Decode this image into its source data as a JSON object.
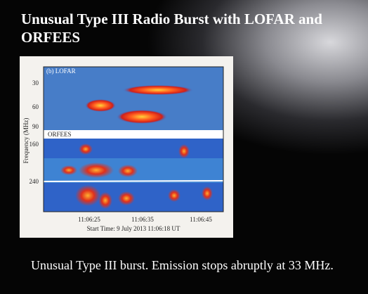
{
  "slide": {
    "title": "Unusual Type III Radio Burst with LOFAR and ORFEES",
    "figure": {
      "panel_labels": [
        "(b) LOFAR",
        "ORFEES"
      ],
      "y_axis_label": "Frequency (MHz)",
      "y_ticks": [
        "30",
        "60",
        "90",
        "160",
        "240"
      ],
      "x_ticks": [
        "11:06:25",
        "11:06:35",
        "11:06:45"
      ],
      "x_axis_label": "Start Time: 9 July 2013 11:06:18 UT"
    },
    "caption": "Unusual Type III burst. Emission stops abruptly at 33 MHz."
  }
}
